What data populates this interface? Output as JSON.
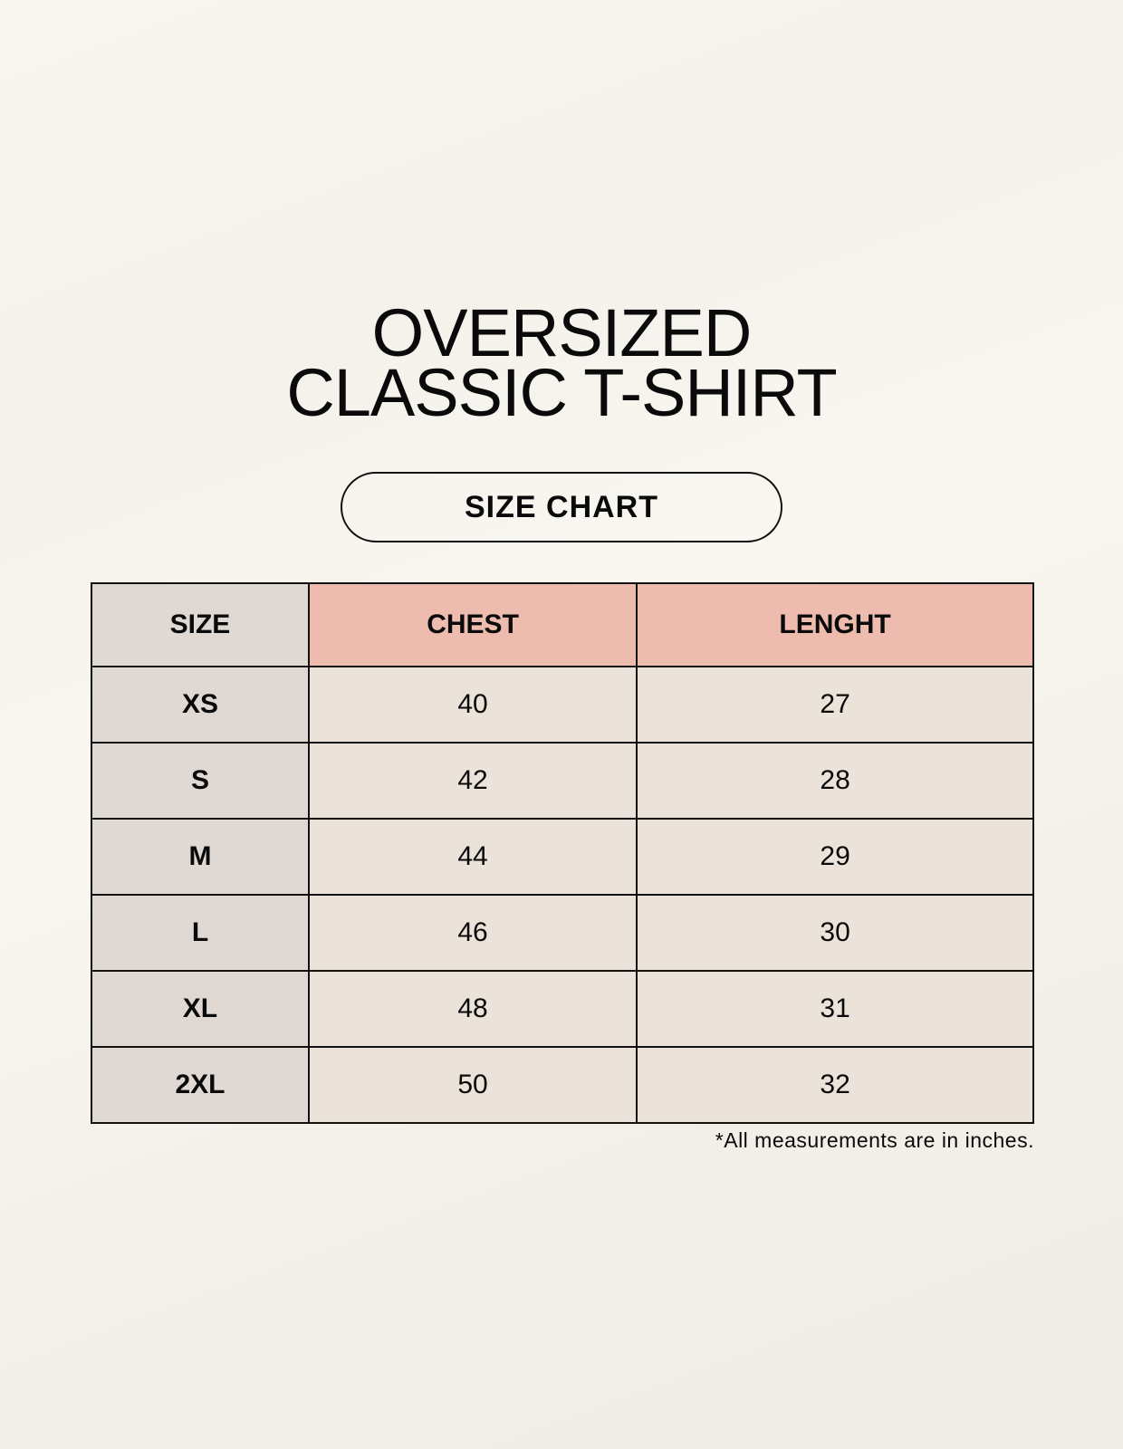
{
  "title": {
    "line1": "OVERSIZED",
    "line2": "CLASSIC T-SHIRT"
  },
  "badge": "SIZE CHART",
  "table": {
    "headers": [
      "SIZE",
      "CHEST",
      "LENGHT"
    ],
    "rows": [
      [
        "XS",
        "40",
        "27"
      ],
      [
        "S",
        "42",
        "28"
      ],
      [
        "M",
        "44",
        "29"
      ],
      [
        "L",
        "46",
        "30"
      ],
      [
        "XL",
        "48",
        "31"
      ],
      [
        "2XL",
        "50",
        "32"
      ]
    ]
  },
  "colors": {
    "size_column": "#e0d8d3",
    "header_accent": "#edbcae",
    "value_cells": "#ebe3d9"
  },
  "footnote": "*All measurements are in inches."
}
